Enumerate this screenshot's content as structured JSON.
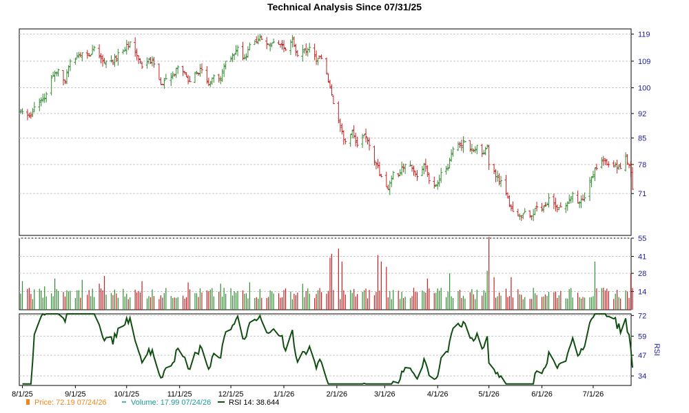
{
  "chart_data": {
    "title": "Technical Analysis Since 07/31/25",
    "colors": {
      "up": "#2e8b2e",
      "down": "#c81e1e",
      "rsi": "#0f4d0f",
      "axis_text": "#1a1aa0",
      "legend_price": "#f0861e",
      "legend_volume": "#1a9a9a",
      "grid": "#c8c8c8"
    },
    "price_panel": {
      "type": "ohlc",
      "y_scale": "log",
      "ylim": [
        62,
        121
      ],
      "ticks": [
        71,
        78,
        85,
        92,
        100,
        109,
        119
      ],
      "anchors": [
        [
          "2025-07-31",
          93
        ],
        [
          "2025-08-05",
          91
        ],
        [
          "2025-08-08",
          94
        ],
        [
          "2025-08-12",
          96
        ],
        [
          "2025-08-15",
          98
        ],
        [
          "2025-08-19",
          104
        ],
        [
          "2025-08-22",
          106
        ],
        [
          "2025-08-26",
          102
        ],
        [
          "2025-08-29",
          109
        ],
        [
          "2025-09-02",
          111
        ],
        [
          "2025-09-05",
          112
        ],
        [
          "2025-09-09",
          111
        ],
        [
          "2025-09-12",
          114
        ],
        [
          "2025-09-16",
          110
        ],
        [
          "2025-09-19",
          109
        ],
        [
          "2025-09-23",
          108
        ],
        [
          "2025-09-26",
          112
        ],
        [
          "2025-09-30",
          113
        ],
        [
          "2025-10-03",
          116
        ],
        [
          "2025-10-07",
          111
        ],
        [
          "2025-10-10",
          107
        ],
        [
          "2025-10-14",
          110
        ],
        [
          "2025-10-17",
          108
        ],
        [
          "2025-10-21",
          101
        ],
        [
          "2025-10-24",
          103
        ],
        [
          "2025-10-28",
          104
        ],
        [
          "2025-10-31",
          107
        ],
        [
          "2025-11-04",
          105
        ],
        [
          "2025-11-07",
          102
        ],
        [
          "2025-11-11",
          105
        ],
        [
          "2025-11-14",
          106
        ],
        [
          "2025-11-18",
          101
        ],
        [
          "2025-11-21",
          104
        ],
        [
          "2025-11-25",
          103
        ],
        [
          "2025-11-28",
          109
        ],
        [
          "2025-12-02",
          111
        ],
        [
          "2025-12-05",
          114
        ],
        [
          "2025-12-09",
          110
        ],
        [
          "2025-12-12",
          115
        ],
        [
          "2025-12-16",
          116
        ],
        [
          "2025-12-19",
          117
        ],
        [
          "2025-12-23",
          115
        ],
        [
          "2025-12-26",
          116
        ],
        [
          "2025-12-30",
          115
        ],
        [
          "2026-01-02",
          113
        ],
        [
          "2026-01-06",
          117
        ],
        [
          "2026-01-09",
          111
        ],
        [
          "2026-01-13",
          113
        ],
        [
          "2026-01-16",
          114
        ],
        [
          "2026-01-20",
          109
        ],
        [
          "2026-01-23",
          110
        ],
        [
          "2026-01-27",
          102
        ],
        [
          "2026-01-30",
          95
        ],
        [
          "2026-02-03",
          88
        ],
        [
          "2026-02-06",
          84
        ],
        [
          "2026-02-10",
          87
        ],
        [
          "2026-02-13",
          83
        ],
        [
          "2026-02-17",
          86
        ],
        [
          "2026-02-20",
          83
        ],
        [
          "2026-02-24",
          78
        ],
        [
          "2026-02-27",
          75
        ],
        [
          "2026-03-03",
          72
        ],
        [
          "2026-03-06",
          76
        ],
        [
          "2026-03-10",
          76
        ],
        [
          "2026-03-13",
          78
        ],
        [
          "2026-03-17",
          77
        ],
        [
          "2026-03-20",
          75
        ],
        [
          "2026-03-24",
          78
        ],
        [
          "2026-03-27",
          74
        ],
        [
          "2026-03-31",
          73
        ],
        [
          "2026-04-03",
          76
        ],
        [
          "2026-04-07",
          77
        ],
        [
          "2026-04-10",
          82
        ],
        [
          "2026-04-14",
          83
        ],
        [
          "2026-04-17",
          84
        ],
        [
          "2026-04-21",
          82
        ],
        [
          "2026-04-24",
          83
        ],
        [
          "2026-04-28",
          81
        ],
        [
          "2026-04-30",
          83
        ],
        [
          "2026-05-01",
          78
        ],
        [
          "2026-05-05",
          75
        ],
        [
          "2026-05-08",
          74
        ],
        [
          "2026-05-12",
          70
        ],
        [
          "2026-05-15",
          67
        ],
        [
          "2026-05-19",
          66
        ],
        [
          "2026-05-22",
          67
        ],
        [
          "2026-05-26",
          66
        ],
        [
          "2026-05-29",
          68
        ],
        [
          "2026-06-02",
          68
        ],
        [
          "2026-06-05",
          70
        ],
        [
          "2026-06-09",
          68
        ],
        [
          "2026-06-12",
          68
        ],
        [
          "2026-06-16",
          69
        ],
        [
          "2026-06-19",
          71
        ],
        [
          "2026-06-23",
          69
        ],
        [
          "2026-06-26",
          70
        ],
        [
          "2026-06-30",
          75
        ],
        [
          "2026-07-03",
          77
        ],
        [
          "2026-07-07",
          79
        ],
        [
          "2026-07-10",
          78
        ],
        [
          "2026-07-14",
          78
        ],
        [
          "2026-07-17",
          77
        ],
        [
          "2026-07-20",
          80
        ],
        [
          "2026-07-22",
          78
        ],
        [
          "2026-07-23",
          76
        ],
        [
          "2026-07-24",
          72
        ]
      ]
    },
    "volume_panel": {
      "type": "bar",
      "ylim": [
        0,
        55
      ],
      "ticks": [
        14,
        28,
        41,
        55
      ],
      "spikes": [
        [
          "2025-08-01",
          22
        ],
        [
          "2025-08-14",
          18
        ],
        [
          "2025-08-20",
          24
        ],
        [
          "2025-09-05",
          23
        ],
        [
          "2025-09-15",
          20
        ],
        [
          "2025-09-18",
          26
        ],
        [
          "2025-10-10",
          22
        ],
        [
          "2025-11-06",
          21
        ],
        [
          "2025-11-25",
          20
        ],
        [
          "2025-12-12",
          21
        ],
        [
          "2026-01-12",
          20
        ],
        [
          "2026-01-28",
          40
        ],
        [
          "2026-01-29",
          43
        ],
        [
          "2026-02-02",
          47
        ],
        [
          "2026-02-04",
          37
        ],
        [
          "2026-02-25",
          42
        ],
        [
          "2026-02-27",
          37
        ],
        [
          "2026-03-02",
          33
        ],
        [
          "2026-03-26",
          24
        ],
        [
          "2026-04-08",
          28
        ],
        [
          "2026-04-30",
          30
        ],
        [
          "2026-05-01",
          56
        ],
        [
          "2026-05-04",
          25
        ],
        [
          "2026-05-14",
          25
        ],
        [
          "2026-07-02",
          37
        ],
        [
          "2026-07-23",
          28
        ]
      ]
    },
    "rsi_panel": {
      "type": "line",
      "label": "RSI",
      "ylim": [
        28,
        73
      ],
      "ticks": [
        34,
        47,
        59,
        72
      ]
    },
    "x_axis": {
      "start": "2025-07-31",
      "end": "2026-07-24",
      "labels": [
        [
          "2025-08-01",
          "8/1/25"
        ],
        [
          "2025-09-01",
          "9/1/25"
        ],
        [
          "2025-10-01",
          "10/1/25"
        ],
        [
          "2025-11-01",
          "11/1/25"
        ],
        [
          "2025-12-01",
          "12/1/25"
        ],
        [
          "2026-01-01",
          "1/1/26"
        ],
        [
          "2026-02-01",
          "2/1/26"
        ],
        [
          "2026-03-01",
          "3/1/26"
        ],
        [
          "2026-04-01",
          "4/1/26"
        ],
        [
          "2026-05-01",
          "5/1/26"
        ],
        [
          "2026-06-01",
          "6/1/26"
        ],
        [
          "2026-07-01",
          "7/1/26"
        ]
      ]
    },
    "legend": {
      "price_label": "Price: 72.19  07/24/26",
      "volume_label": "Volume: 17.99  07/24/26",
      "rsi_label": "RSI 14: 38.644"
    }
  }
}
